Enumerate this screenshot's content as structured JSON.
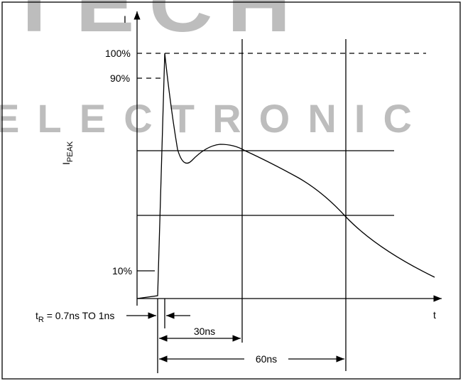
{
  "watermark": {
    "top": "TECH",
    "bottom": "ELECTRONIC"
  },
  "axes": {
    "y_label": "I",
    "x_label": "t"
  },
  "levels": {
    "peak": "100%",
    "ninety": "90%",
    "ten": "10%"
  },
  "ipeak": {
    "main": "I",
    "sub": "PEAK"
  },
  "rise_time": {
    "main": "t",
    "sub": "R",
    "rest": " = 0.7ns TO 1ns"
  },
  "intervals": {
    "first": "30ns",
    "second": "60ns"
  }
}
